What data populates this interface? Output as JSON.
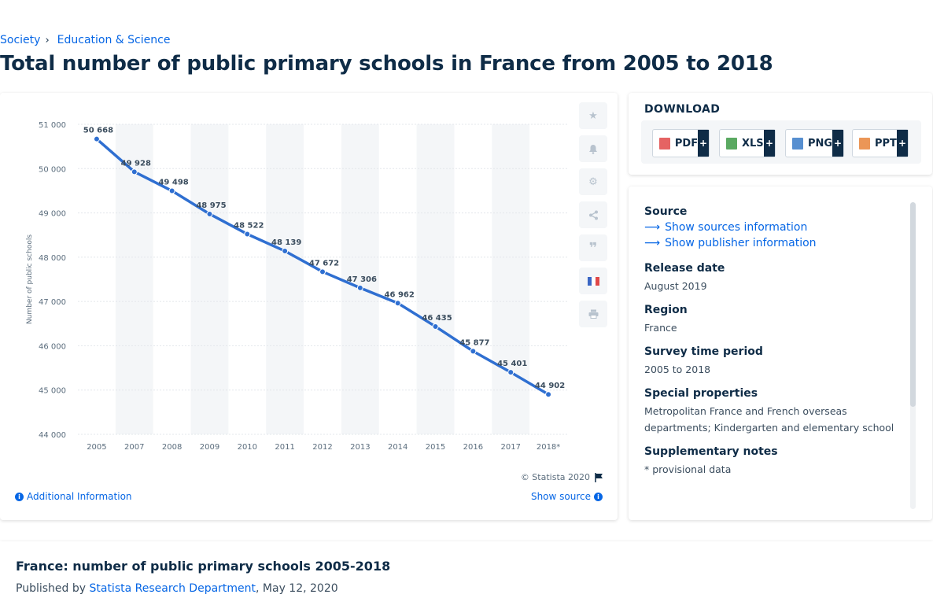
{
  "breadcrumb": {
    "items": [
      "Society",
      "Education & Science"
    ]
  },
  "page": {
    "title": "Total number of public primary schools in France from 2005 to 2018"
  },
  "chart_data": {
    "type": "line",
    "categories": [
      "2005",
      "2007",
      "2008",
      "2009",
      "2010",
      "2011",
      "2012",
      "2013",
      "2014",
      "2015",
      "2016",
      "2017",
      "2018*"
    ],
    "series": [
      {
        "values": [
          50668,
          49928,
          49498,
          48975,
          48522,
          48139,
          47672,
          47306,
          46962,
          46435,
          45877,
          45401,
          44902
        ]
      }
    ],
    "data_labels": [
      "50 668",
      "49 928",
      "49 498",
      "48 975",
      "48 522",
      "48 139",
      "47 672",
      "47 306",
      "46 962",
      "46 435",
      "45 877",
      "45 401",
      "44 902"
    ],
    "ylabel": "Number of public schools",
    "ylim": [
      44000,
      51000
    ],
    "yticks": [
      44000,
      45000,
      46000,
      47000,
      48000,
      49000,
      50000,
      51000
    ],
    "ytick_labels": [
      "44 000",
      "45 000",
      "46 000",
      "47 000",
      "48 000",
      "49 000",
      "50 000",
      "51 000"
    ],
    "grid": true,
    "line_color": "#2f6fd1",
    "band_color": "#f4f6f8"
  },
  "chart_footer": {
    "copyright": "© Statista 2020",
    "additional_info": "Additional Information",
    "show_source": "Show source"
  },
  "download": {
    "title": "DOWNLOAD",
    "buttons": [
      {
        "label": "PDF",
        "color": "#e04848"
      },
      {
        "label": "XLS",
        "color": "#3d9a45"
      },
      {
        "label": "PNG",
        "color": "#3a7bc8"
      },
      {
        "label": "PPT",
        "color": "#e8843a"
      }
    ],
    "plus": "+"
  },
  "meta": {
    "source_label": "Source",
    "source_link": "Show sources information",
    "publisher_link": "Show publisher information",
    "release_label": "Release date",
    "release_value": "August 2019",
    "region_label": "Region",
    "region_value": "France",
    "period_label": "Survey time period",
    "period_value": "2005 to 2018",
    "special_label": "Special properties",
    "special_value": "Metropolitan France and French overseas departments; Kindergarten and elementary school",
    "notes_label": "Supplementary notes",
    "notes_value": "* provisional data"
  },
  "footer": {
    "title": "France: number of public primary schools 2005-2018",
    "published_prefix": "Published by ",
    "publisher": "Statista Research Department",
    "date": ", May 12, 2020"
  }
}
